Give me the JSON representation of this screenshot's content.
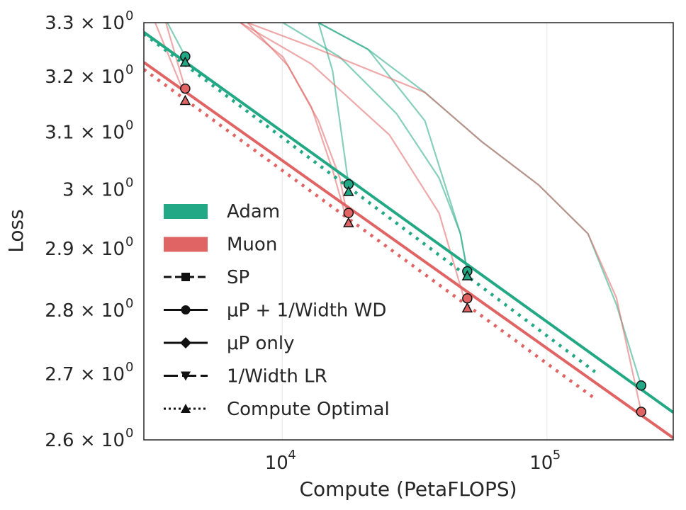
{
  "chart_data": {
    "type": "line",
    "title": "",
    "xlabel": "Compute (PetaFLOPS)",
    "ylabel": "Loss",
    "xscale": "log",
    "yscale": "log",
    "xlim": [
      3000,
      300000
    ],
    "ylim": [
      2.6,
      3.3
    ],
    "grid": "vertical major only",
    "legend_placement": "lower-left",
    "x_ticks": [
      {
        "value": 10000,
        "base": "10",
        "exp": "4"
      },
      {
        "value": 100000,
        "base": "10",
        "exp": "5"
      }
    ],
    "y_ticks": [
      {
        "value": 2.6,
        "label": "2.6 × 10",
        "exp": "0"
      },
      {
        "value": 2.7,
        "label": "2.7 × 10",
        "exp": "0"
      },
      {
        "value": 2.8,
        "label": "2.8 × 10",
        "exp": "0"
      },
      {
        "value": 2.9,
        "label": "2.9 × 10",
        "exp": "0"
      },
      {
        "value": 3.0,
        "label": "3 × 10",
        "exp": "0"
      },
      {
        "value": 3.1,
        "label": "3.1 × 10",
        "exp": "0"
      },
      {
        "value": 3.2,
        "label": "3.2 × 10",
        "exp": "0"
      },
      {
        "value": 3.3,
        "label": "3.3 × 10",
        "exp": "0"
      }
    ],
    "colors": {
      "Adam": "#22a884",
      "Muon": "#e06464"
    },
    "legend": [
      {
        "label": "Adam",
        "kind": "patch",
        "color": "#22a884"
      },
      {
        "label": "Muon",
        "kind": "patch",
        "color": "#e06464"
      },
      {
        "label": "SP",
        "kind": "line",
        "dash": "dashed",
        "marker": "square"
      },
      {
        "label": "μP + 1/Width WD",
        "kind": "line",
        "dash": "solid",
        "marker": "circle"
      },
      {
        "label": "μP only",
        "kind": "line",
        "dash": "solid",
        "marker": "diamond"
      },
      {
        "label": "1/Width LR",
        "kind": "line",
        "dash": "longdash",
        "marker": "triangle-down"
      },
      {
        "label": "Compute Optimal",
        "kind": "line",
        "dash": "dotted",
        "marker": "triangle-up"
      }
    ],
    "training_curves": [
      {
        "optimizer": "Adam",
        "points": [
          [
            3681,
            3.3
          ],
          [
            4300,
            3.237
          ]
        ]
      },
      {
        "optimizer": "Adam",
        "points": [
          [
            13700,
            3.3
          ],
          [
            15500,
            3.21
          ],
          [
            16490,
            3.12
          ],
          [
            17800,
            3.009
          ]
        ]
      },
      {
        "optimizer": "Adam",
        "points": [
          [
            10060,
            3.3
          ],
          [
            16490,
            3.236
          ],
          [
            27000,
            3.133
          ],
          [
            39100,
            3.02
          ],
          [
            47100,
            2.925
          ],
          [
            50000,
            2.863
          ]
        ]
      },
      {
        "optimizer": "Adam",
        "points": [
          [
            13700,
            3.3
          ],
          [
            21100,
            3.25
          ],
          [
            34600,
            3.12
          ],
          [
            47100,
            2.925
          ],
          [
            50000,
            2.863
          ]
        ]
      },
      {
        "optimizer": "Adam",
        "points": [
          [
            13700,
            3.3
          ],
          [
            21100,
            3.25
          ],
          [
            34600,
            3.171
          ],
          [
            56700,
            3.083
          ],
          [
            92900,
            3.008
          ],
          [
            142900,
            2.925
          ],
          [
            183000,
            2.809
          ],
          [
            227000,
            2.682
          ]
        ]
      },
      {
        "optimizer": "Muon",
        "points": [
          [
            3311,
            3.3
          ],
          [
            4188,
            3.178
          ]
        ]
      },
      {
        "optimizer": "Muon",
        "points": [
          [
            3634,
            3.3
          ],
          [
            4296,
            3.178
          ]
        ]
      },
      {
        "optimizer": "Muon",
        "points": [
          [
            6950,
            3.3
          ],
          [
            10060,
            3.236
          ],
          [
            12880,
            3.145
          ],
          [
            15500,
            3.033
          ],
          [
            17220,
            2.96
          ]
        ]
      },
      {
        "optimizer": "Muon",
        "points": [
          [
            7390,
            3.3
          ],
          [
            10500,
            3.22
          ],
          [
            13700,
            3.12
          ],
          [
            16490,
            3.02
          ],
          [
            17540,
            2.96
          ]
        ]
      },
      {
        "optimizer": "Muon",
        "points": [
          [
            6950,
            3.3
          ],
          [
            12880,
            3.223
          ],
          [
            25400,
            3.095
          ],
          [
            39100,
            2.96
          ],
          [
            48600,
            2.819
          ]
        ]
      },
      {
        "optimizer": "Muon",
        "points": [
          [
            7390,
            3.3
          ],
          [
            13700,
            3.25
          ],
          [
            34600,
            3.171
          ],
          [
            56700,
            3.083
          ],
          [
            92900,
            3.008
          ],
          [
            142900,
            2.925
          ],
          [
            183000,
            2.82
          ],
          [
            227000,
            2.642
          ]
        ]
      }
    ],
    "fit_lines": [
      {
        "optimizer": "Adam",
        "style": "solid",
        "points": [
          [
            3000,
            3.282
          ],
          [
            300000,
            2.641
          ]
        ]
      },
      {
        "optimizer": "Muon",
        "style": "solid",
        "points": [
          [
            3000,
            3.226
          ],
          [
            300000,
            2.603
          ]
        ]
      },
      {
        "optimizer": "Adam",
        "style": "dotted",
        "points": [
          [
            3000,
            3.279
          ],
          [
            152000,
            2.703
          ]
        ]
      },
      {
        "optimizer": "Muon",
        "style": "dotted",
        "points": [
          [
            3000,
            3.213
          ],
          [
            152000,
            2.662
          ]
        ]
      }
    ],
    "markers": [
      {
        "optimizer": "Adam",
        "marker": "circle",
        "points": [
          [
            4300,
            3.237
          ],
          [
            17800,
            3.009
          ],
          [
            50000,
            2.863
          ],
          [
            227000,
            2.682
          ]
        ]
      },
      {
        "optimizer": "Adam",
        "marker": "triangle-up",
        "points": [
          [
            4300,
            3.227
          ],
          [
            17800,
            2.997
          ],
          [
            50000,
            2.856
          ]
        ]
      },
      {
        "optimizer": "Muon",
        "marker": "circle",
        "points": [
          [
            4300,
            3.178
          ],
          [
            17800,
            2.96
          ],
          [
            50000,
            2.819
          ],
          [
            227000,
            2.642
          ]
        ]
      },
      {
        "optimizer": "Muon",
        "marker": "triangle-up",
        "points": [
          [
            4300,
            3.157
          ],
          [
            17800,
            2.944
          ],
          [
            50000,
            2.804
          ]
        ]
      }
    ]
  }
}
